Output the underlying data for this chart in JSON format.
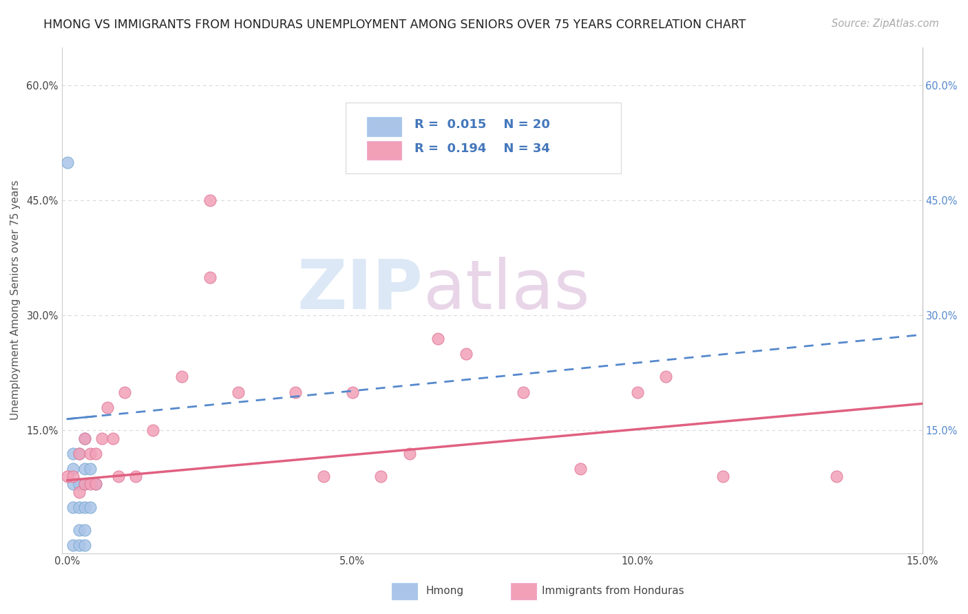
{
  "title": "HMONG VS IMMIGRANTS FROM HONDURAS UNEMPLOYMENT AMONG SENIORS OVER 75 YEARS CORRELATION CHART",
  "source": "Source: ZipAtlas.com",
  "ylabel": "Unemployment Among Seniors over 75 years",
  "xlim": [
    0.0,
    0.15
  ],
  "ylim": [
    0.0,
    0.65
  ],
  "hmong_color": "#aac4e8",
  "honduras_color": "#f2a0b8",
  "hmong_edge_color": "#7aaad0",
  "honduras_edge_color": "#e07898",
  "hmong_line_color": "#5588cc",
  "honduras_line_color": "#e06080",
  "grid_color": "#d8d8d8",
  "watermark_zip_color": "#dde8f5",
  "watermark_atlas_color": "#e8d8e8",
  "background_color": "#ffffff",
  "title_fontsize": 12.5,
  "source_fontsize": 10.5,
  "label_fontsize": 11,
  "tick_fontsize": 10.5,
  "legend_fontsize": 13,
  "hmong_scatter_x": [
    0.0,
    0.001,
    0.001,
    0.001,
    0.001,
    0.001,
    0.002,
    0.002,
    0.002,
    0.002,
    0.002,
    0.003,
    0.003,
    0.003,
    0.003,
    0.003,
    0.003,
    0.004,
    0.004,
    0.005
  ],
  "hmong_scatter_y": [
    0.5,
    0.12,
    0.1,
    0.08,
    0.05,
    0.0,
    0.12,
    0.08,
    0.05,
    0.02,
    0.0,
    0.14,
    0.1,
    0.08,
    0.05,
    0.02,
    0.0,
    0.1,
    0.05,
    0.08
  ],
  "honduras_scatter_x": [
    0.0,
    0.001,
    0.002,
    0.002,
    0.003,
    0.003,
    0.004,
    0.004,
    0.005,
    0.005,
    0.006,
    0.007,
    0.008,
    0.009,
    0.01,
    0.012,
    0.015,
    0.02,
    0.025,
    0.025,
    0.03,
    0.04,
    0.045,
    0.05,
    0.055,
    0.06,
    0.065,
    0.07,
    0.08,
    0.09,
    0.1,
    0.105,
    0.115,
    0.135
  ],
  "honduras_scatter_y": [
    0.09,
    0.09,
    0.12,
    0.07,
    0.14,
    0.08,
    0.12,
    0.08,
    0.12,
    0.08,
    0.14,
    0.18,
    0.14,
    0.09,
    0.2,
    0.09,
    0.15,
    0.22,
    0.45,
    0.35,
    0.2,
    0.2,
    0.09,
    0.2,
    0.09,
    0.12,
    0.27,
    0.25,
    0.2,
    0.1,
    0.2,
    0.22,
    0.09,
    0.09
  ],
  "hmong_trend_x": [
    0.0,
    0.15
  ],
  "hmong_trend_y": [
    0.165,
    0.275
  ],
  "honduras_trend_x": [
    0.0,
    0.15
  ],
  "honduras_trend_y": [
    0.085,
    0.185
  ]
}
